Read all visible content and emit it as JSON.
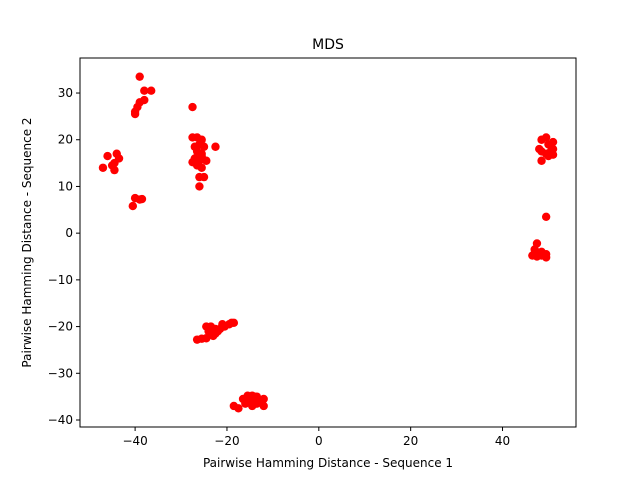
{
  "chart_data": {
    "type": "scatter",
    "title": "MDS",
    "xlabel": "Pairwise Hamming Distance - Sequence 1",
    "ylabel": "Pairwise Hamming Distance - Sequence 2",
    "xlim": [
      -52,
      56
    ],
    "ylim": [
      -41.5,
      37.5
    ],
    "xticks": [
      -40,
      -20,
      0,
      20,
      40
    ],
    "yticks": [
      -40,
      -30,
      -20,
      -10,
      0,
      10,
      20,
      30
    ],
    "grid": false,
    "marker_color": "#ff0000",
    "series": [
      {
        "points": [
          [
            -39,
            33.5
          ],
          [
            -38,
            30.5
          ],
          [
            -36.5,
            30.5
          ],
          [
            -38,
            28.5
          ],
          [
            -39,
            28
          ],
          [
            -39.5,
            27
          ],
          [
            -40,
            26
          ],
          [
            -40,
            25.5
          ],
          [
            -46,
            16.5
          ],
          [
            -44,
            17
          ],
          [
            -43.5,
            16
          ],
          [
            -44.5,
            15
          ],
          [
            -45,
            14.5
          ],
          [
            -44.5,
            13.5
          ],
          [
            -47,
            14
          ],
          [
            -40,
            7.5
          ],
          [
            -39,
            7.2
          ],
          [
            -38.5,
            7.3
          ],
          [
            -40.5,
            5.8
          ],
          [
            -27.5,
            27
          ],
          [
            -27.5,
            20.5
          ],
          [
            -26.5,
            20.5
          ],
          [
            -25.5,
            20
          ],
          [
            -26,
            19
          ],
          [
            -25,
            18.5
          ],
          [
            -27,
            18.5
          ],
          [
            -26.5,
            17.5
          ],
          [
            -25.5,
            17
          ],
          [
            -27,
            16
          ],
          [
            -26,
            15.5
          ],
          [
            -24.5,
            15.5
          ],
          [
            -27.5,
            15.2
          ],
          [
            -26.5,
            14.5
          ],
          [
            -25.5,
            14
          ],
          [
            -26,
            12
          ],
          [
            -25,
            12
          ],
          [
            -26,
            10
          ],
          [
            -22.5,
            18.5
          ],
          [
            -25.5,
            16.5
          ],
          [
            -26.5,
            -22.8
          ],
          [
            -25.5,
            -22.6
          ],
          [
            -24.5,
            -22.5
          ],
          [
            -24.5,
            -20
          ],
          [
            -23.5,
            -20
          ],
          [
            -23,
            -21
          ],
          [
            -22.5,
            -21.5
          ],
          [
            -22.5,
            -20.5
          ],
          [
            -23,
            -22
          ],
          [
            -22,
            -21
          ],
          [
            -21.5,
            -20.5
          ],
          [
            -21,
            -19.5
          ],
          [
            -20.5,
            -20
          ],
          [
            -19.5,
            -19.5
          ],
          [
            -19,
            -19.2
          ],
          [
            -18.5,
            -19.2
          ],
          [
            -24,
            -21
          ],
          [
            -18.5,
            -37
          ],
          [
            -17.5,
            -37.5
          ],
          [
            -16,
            -36.5
          ],
          [
            -16.5,
            -35.5
          ],
          [
            -15.5,
            -34.8
          ],
          [
            -15,
            -35.5
          ],
          [
            -14.5,
            -34.8
          ],
          [
            -14,
            -35
          ],
          [
            -14.5,
            -36.2
          ],
          [
            -13.5,
            -35
          ],
          [
            -13,
            -36
          ],
          [
            -12,
            -35.5
          ],
          [
            -14.5,
            -37
          ],
          [
            -12,
            -37
          ],
          [
            -15.5,
            -36.2
          ],
          [
            -13.5,
            -36.5
          ],
          [
            48.5,
            20
          ],
          [
            49.5,
            20.5
          ],
          [
            50,
            19
          ],
          [
            51,
            19.5
          ],
          [
            48,
            18
          ],
          [
            48.5,
            17.5
          ],
          [
            49.5,
            17
          ],
          [
            50.5,
            17.5
          ],
          [
            51,
            18
          ],
          [
            50,
            16.5
          ],
          [
            51,
            16.8
          ],
          [
            48.5,
            15.5
          ],
          [
            49.5,
            3.5
          ],
          [
            47.5,
            -2.2
          ],
          [
            47,
            -3.5
          ],
          [
            48,
            -4.5
          ],
          [
            48.5,
            -4
          ],
          [
            47.5,
            -5
          ],
          [
            46.5,
            -4.8
          ],
          [
            49.5,
            -4.5
          ],
          [
            49.5,
            -5.2
          ],
          [
            48.5,
            -4.8
          ],
          [
            47.2,
            -4
          ]
        ]
      }
    ]
  }
}
